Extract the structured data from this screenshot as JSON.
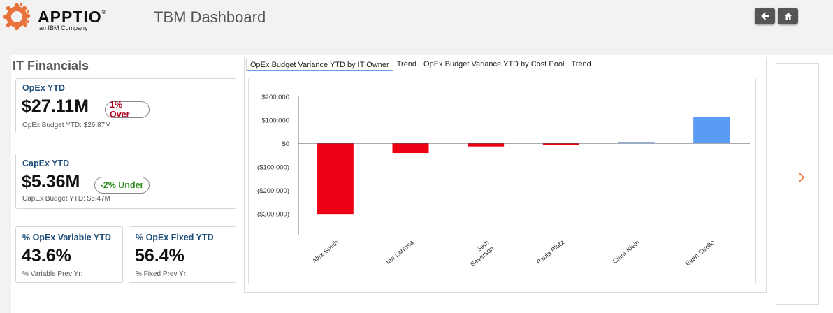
{
  "header": {
    "logo_text": "APPTIO",
    "logo_registered": "®",
    "logo_subtitle": "an IBM Company",
    "app_title": "TBM Dashboard",
    "buttons": [
      {
        "name": "back",
        "icon": "arrow-left-icon"
      },
      {
        "name": "home",
        "icon": "home-icon"
      }
    ]
  },
  "section_title": "IT Financials",
  "cards": {
    "opex": {
      "label": "OpEx YTD",
      "value": "$27.11M",
      "badge": "1% Over",
      "badge_color": "#b00020",
      "sub": "OpEx Budget YTD: $26.87M"
    },
    "capex": {
      "label": "CapEx YTD",
      "value": "$5.36M",
      "badge": "-2% Under",
      "badge_color": "#2e8b1e",
      "sub": "CapEx Budget YTD: $5.47M"
    },
    "variable": {
      "label": "% OpEx Variable YTD",
      "value": "43.6%",
      "sub": "% Variable Prev Yr:"
    },
    "fixed": {
      "label": "% OpEx Fixed YTD",
      "value": "56.4%",
      "sub": "% Fixed Prev Yr:"
    }
  },
  "tabs": [
    {
      "label": "OpEx Budget Variance YTD by IT Owner",
      "active": true
    },
    {
      "label": "Trend",
      "active": false
    },
    {
      "label": "OpEx Budget Variance YTD by Cost Pool",
      "active": false
    },
    {
      "label": "Trend",
      "active": false
    }
  ],
  "chart_data": {
    "type": "bar",
    "title": "",
    "xlabel": "",
    "ylabel": "",
    "categories": [
      "Alex Smith",
      "Ian Larrosa",
      "Sam Severson",
      "Paula Platz",
      "Ciara Klein",
      "Evan Strollo"
    ],
    "category_lines": [
      [
        "Alex Smith"
      ],
      [
        "Ian Larrosa"
      ],
      [
        "Sam",
        "Severson"
      ],
      [
        "Paula Platz"
      ],
      [
        "Ciara Klein"
      ],
      [
        "Evan Strollo"
      ]
    ],
    "values": [
      -305000,
      -42000,
      -14000,
      -8000,
      5000,
      112000
    ],
    "ylim": [
      -340000,
      220000
    ],
    "yticks": [
      200000,
      100000,
      0,
      -100000,
      -200000,
      -300000
    ],
    "ytick_labels": [
      "$200,000",
      "$100,000",
      "$0",
      "($100,000)",
      "($200,000)",
      "($300,000)"
    ],
    "colors": {
      "negative": "#ee0014",
      "positive": "#5b9bf8",
      "positive_small": "#4a86d8"
    },
    "grid": false
  },
  "colors": {
    "accent": "#e8733a",
    "label_blue": "#1f4e79"
  }
}
